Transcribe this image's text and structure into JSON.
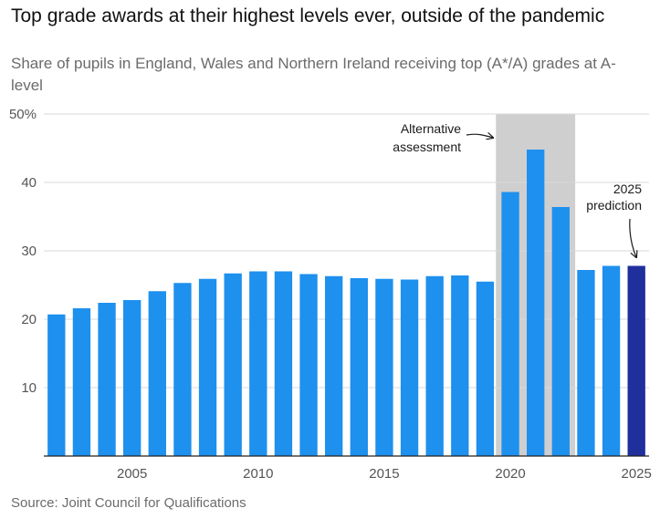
{
  "title": "Top grade awards at their highest levels ever, outside of the pandemic",
  "subtitle": "Share of pupils in England, Wales and Northern Ireland receiving top (A*/A) grades at A-level",
  "source": "Source: Joint Council for Qualifications",
  "colors": {
    "bar": "#1e90ee",
    "prediction_bar": "#1f2f9c",
    "shade": "#cfcfcf",
    "grid": "#d9d9d9",
    "axis": "#222222"
  },
  "chart_data": {
    "type": "bar",
    "title": "Top grade awards at their highest levels ever, outside of the pandemic",
    "xlabel": "",
    "ylabel": "",
    "ylim": [
      0,
      50
    ],
    "y_ticks": [
      {
        "value": 50,
        "label": "50%"
      },
      {
        "value": 40,
        "label": "40"
      },
      {
        "value": 30,
        "label": "30"
      },
      {
        "value": 20,
        "label": "20"
      },
      {
        "value": 10,
        "label": "10"
      }
    ],
    "x_ticks": [
      {
        "value": 2005,
        "label": "2005"
      },
      {
        "value": 2010,
        "label": "2010"
      },
      {
        "value": 2015,
        "label": "2015"
      },
      {
        "value": 2020,
        "label": "2020"
      },
      {
        "value": 2025,
        "label": "2025"
      }
    ],
    "categories": [
      2002,
      2003,
      2004,
      2005,
      2006,
      2007,
      2008,
      2009,
      2010,
      2011,
      2012,
      2013,
      2014,
      2015,
      2016,
      2017,
      2018,
      2019,
      2020,
      2021,
      2022,
      2023,
      2024,
      2025
    ],
    "values": [
      20.7,
      21.6,
      22.4,
      22.8,
      24.1,
      25.3,
      25.9,
      26.7,
      27.0,
      27.0,
      26.6,
      26.3,
      26.0,
      25.9,
      25.8,
      26.3,
      26.4,
      25.5,
      38.6,
      44.8,
      36.4,
      27.2,
      27.8,
      27.8
    ],
    "highlight": {
      "category": 2025,
      "label": "2025 prediction"
    },
    "shaded_range": {
      "from": 2020,
      "to": 2022,
      "label": "Alternative assessment"
    },
    "annotations": [
      {
        "text": "Alternative",
        "target": "shaded_range"
      },
      {
        "text": "assessment",
        "target": "shaded_range"
      },
      {
        "text": "2025",
        "target": 2025
      },
      {
        "text": "prediction",
        "target": 2025
      }
    ],
    "grid": true
  }
}
